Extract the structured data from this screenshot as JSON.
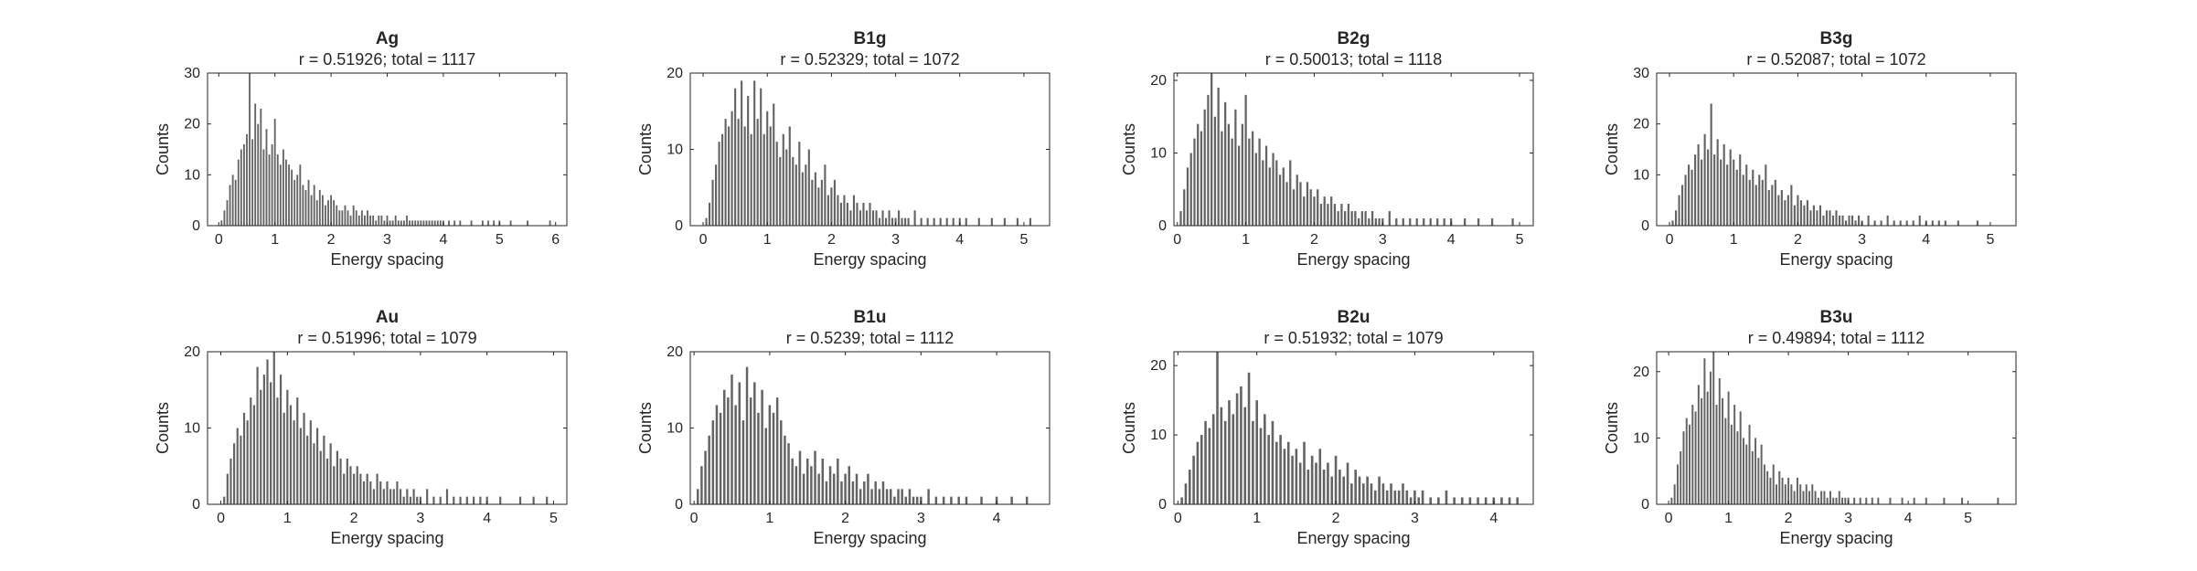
{
  "figure": {
    "background": "#ffffff",
    "bar_color": "#636363",
    "axis_color": "#262626"
  },
  "chart_data": [
    {
      "type": "bar",
      "title": "Ag",
      "subtitle": "r = 0.51926; total = 1117",
      "xlabel": "Energy spacing",
      "ylabel": "Counts",
      "xlim": [
        -0.2,
        6.2
      ],
      "ylim": [
        0,
        30
      ],
      "xticks": [
        "0",
        "1",
        "2",
        "3",
        "4",
        "5",
        "6"
      ],
      "yticks": [
        "0",
        "10",
        "20",
        "30"
      ],
      "bin_width": 0.03,
      "bins": [
        0.05,
        0.1,
        0.15,
        0.2,
        0.25,
        0.3,
        0.35,
        0.4,
        0.45,
        0.5,
        0.55,
        0.6,
        0.65,
        0.7,
        0.75,
        0.8,
        0.85,
        0.9,
        0.95,
        1.0,
        1.05,
        1.1,
        1.15,
        1.2,
        1.25,
        1.3,
        1.35,
        1.4,
        1.45,
        1.5,
        1.55,
        1.6,
        1.65,
        1.7,
        1.75,
        1.8,
        1.85,
        1.9,
        1.95,
        2.0,
        2.05,
        2.1,
        2.15,
        2.2,
        2.25,
        2.3,
        2.35,
        2.4,
        2.45,
        2.5,
        2.55,
        2.6,
        2.65,
        2.7,
        2.75,
        2.8,
        2.85,
        2.9,
        2.95,
        3.0,
        3.05,
        3.1,
        3.15,
        3.2,
        3.25,
        3.3,
        3.35,
        3.4,
        3.45,
        3.5,
        3.55,
        3.6,
        3.65,
        3.7,
        3.75,
        3.8,
        3.85,
        3.9,
        3.95,
        4.0,
        4.1,
        4.2,
        4.3,
        4.5,
        4.7,
        4.8,
        4.9,
        5.0,
        5.2,
        5.5,
        5.9
      ],
      "counts": [
        1,
        3,
        5,
        8,
        10,
        9,
        13,
        15,
        16,
        18,
        30,
        17,
        24,
        20,
        23,
        15,
        19,
        14,
        16,
        21,
        14,
        12,
        15,
        13,
        12,
        11,
        9,
        10,
        12,
        8,
        7,
        9,
        6,
        8,
        5,
        7,
        6,
        4,
        5,
        6,
        5,
        4,
        3,
        3,
        4,
        3,
        2,
        4,
        3,
        2,
        3,
        2,
        3,
        2,
        2,
        1,
        2,
        2,
        1,
        2,
        1,
        1,
        2,
        1,
        1,
        1,
        2,
        1,
        1,
        1,
        1,
        1,
        1,
        1,
        1,
        1,
        1,
        1,
        1,
        1,
        1,
        1,
        1,
        1,
        1,
        1,
        1,
        1,
        1,
        1,
        1
      ]
    },
    {
      "type": "bar",
      "title": "B1g",
      "subtitle": "r = 0.52329; total = 1072",
      "xlabel": "Energy spacing",
      "ylabel": "Counts",
      "xlim": [
        -0.2,
        5.4
      ],
      "ylim": [
        0,
        20
      ],
      "xticks": [
        "0",
        "1",
        "2",
        "3",
        "4",
        "5"
      ],
      "yticks": [
        "0",
        "10",
        "20"
      ],
      "bin_width": 0.03,
      "bins": [
        0.05,
        0.1,
        0.15,
        0.2,
        0.25,
        0.3,
        0.35,
        0.4,
        0.45,
        0.5,
        0.55,
        0.6,
        0.65,
        0.7,
        0.75,
        0.8,
        0.85,
        0.9,
        0.95,
        1.0,
        1.05,
        1.1,
        1.15,
        1.2,
        1.25,
        1.3,
        1.35,
        1.4,
        1.45,
        1.5,
        1.55,
        1.6,
        1.65,
        1.7,
        1.75,
        1.8,
        1.85,
        1.9,
        1.95,
        2.0,
        2.05,
        2.1,
        2.15,
        2.2,
        2.25,
        2.3,
        2.35,
        2.4,
        2.45,
        2.5,
        2.55,
        2.6,
        2.65,
        2.7,
        2.75,
        2.8,
        2.85,
        2.9,
        2.95,
        3.0,
        3.05,
        3.1,
        3.15,
        3.2,
        3.3,
        3.4,
        3.5,
        3.6,
        3.7,
        3.8,
        3.9,
        4.0,
        4.1,
        4.3,
        4.5,
        4.7,
        4.9,
        5.1
      ],
      "counts": [
        1,
        3,
        6,
        8,
        11,
        12,
        14,
        13,
        15,
        18,
        14,
        19,
        13,
        17,
        12,
        19,
        14,
        18,
        12,
        15,
        13,
        16,
        11,
        9,
        12,
        10,
        13,
        9,
        8,
        11,
        7,
        8,
        10,
        6,
        7,
        5,
        6,
        8,
        4,
        5,
        6,
        4,
        3,
        4,
        3,
        2,
        4,
        3,
        2,
        3,
        2,
        3,
        2,
        2,
        1,
        2,
        1,
        2,
        1,
        1,
        2,
        1,
        1,
        1,
        2,
        1,
        1,
        1,
        1,
        1,
        1,
        1,
        1,
        1,
        1,
        1,
        1,
        1
      ]
    },
    {
      "type": "bar",
      "title": "B2g",
      "subtitle": "r = 0.50013; total = 1118",
      "xlabel": "Energy spacing",
      "ylabel": "Counts",
      "xlim": [
        -0.05,
        5.2
      ],
      "ylim": [
        0,
        21
      ],
      "xticks": [
        "0",
        "1",
        "2",
        "3",
        "4",
        "5"
      ],
      "yticks": [
        "0",
        "10",
        "20"
      ],
      "bin_width": 0.03,
      "bins": [
        0.05,
        0.1,
        0.15,
        0.2,
        0.25,
        0.3,
        0.35,
        0.4,
        0.45,
        0.5,
        0.55,
        0.6,
        0.65,
        0.7,
        0.75,
        0.8,
        0.85,
        0.9,
        0.95,
        1.0,
        1.05,
        1.1,
        1.15,
        1.2,
        1.25,
        1.3,
        1.35,
        1.4,
        1.45,
        1.5,
        1.55,
        1.6,
        1.65,
        1.7,
        1.75,
        1.8,
        1.85,
        1.9,
        1.95,
        2.0,
        2.05,
        2.1,
        2.15,
        2.2,
        2.25,
        2.3,
        2.35,
        2.4,
        2.45,
        2.5,
        2.55,
        2.6,
        2.65,
        2.7,
        2.75,
        2.8,
        2.85,
        2.9,
        2.95,
        3.0,
        3.1,
        3.2,
        3.3,
        3.4,
        3.5,
        3.6,
        3.7,
        3.8,
        3.9,
        4.0,
        4.2,
        4.4,
        4.6,
        4.9
      ],
      "counts": [
        2,
        5,
        8,
        10,
        12,
        14,
        13,
        16,
        18,
        21,
        15,
        19,
        13,
        17,
        14,
        12,
        16,
        11,
        14,
        18,
        12,
        13,
        10,
        12,
        9,
        11,
        8,
        10,
        9,
        7,
        8,
        6,
        9,
        5,
        7,
        6,
        4,
        6,
        5,
        4,
        5,
        3,
        4,
        3,
        4,
        3,
        2,
        3,
        2,
        3,
        2,
        2,
        1,
        2,
        2,
        1,
        2,
        1,
        1,
        1,
        2,
        1,
        1,
        1,
        1,
        1,
        1,
        1,
        1,
        1,
        1,
        1,
        1,
        1
      ]
    },
    {
      "type": "bar",
      "title": "B3g",
      "subtitle": "r = 0.52087; total = 1072",
      "xlabel": "Energy spacing",
      "ylabel": "Counts",
      "xlim": [
        -0.2,
        5.4
      ],
      "ylim": [
        0,
        30
      ],
      "xticks": [
        "0",
        "1",
        "2",
        "3",
        "4",
        "5"
      ],
      "yticks": [
        "0",
        "10",
        "20",
        "30"
      ],
      "bin_width": 0.03,
      "bins": [
        0.05,
        0.1,
        0.15,
        0.2,
        0.25,
        0.3,
        0.35,
        0.4,
        0.45,
        0.5,
        0.55,
        0.6,
        0.65,
        0.7,
        0.75,
        0.8,
        0.85,
        0.9,
        0.95,
        1.0,
        1.05,
        1.1,
        1.15,
        1.2,
        1.25,
        1.3,
        1.35,
        1.4,
        1.45,
        1.5,
        1.55,
        1.6,
        1.65,
        1.7,
        1.75,
        1.8,
        1.85,
        1.9,
        1.95,
        2.0,
        2.05,
        2.1,
        2.15,
        2.2,
        2.25,
        2.3,
        2.35,
        2.4,
        2.45,
        2.5,
        2.55,
        2.6,
        2.65,
        2.7,
        2.75,
        2.8,
        2.85,
        2.9,
        2.95,
        3.0,
        3.1,
        3.2,
        3.3,
        3.4,
        3.5,
        3.6,
        3.7,
        3.8,
        3.9,
        4.0,
        4.1,
        4.2,
        4.3,
        4.5,
        4.8
      ],
      "counts": [
        1,
        3,
        6,
        8,
        10,
        12,
        11,
        14,
        16,
        13,
        18,
        15,
        24,
        14,
        17,
        13,
        16,
        12,
        15,
        13,
        11,
        14,
        10,
        12,
        9,
        11,
        8,
        10,
        9,
        12,
        7,
        8,
        9,
        6,
        7,
        5,
        6,
        8,
        4,
        6,
        5,
        4,
        5,
        3,
        4,
        3,
        4,
        2,
        3,
        3,
        2,
        3,
        2,
        2,
        1,
        2,
        2,
        1,
        2,
        1,
        2,
        1,
        1,
        2,
        1,
        1,
        1,
        1,
        2,
        1,
        1,
        1,
        1,
        1,
        1
      ]
    },
    {
      "type": "bar",
      "title": "Au",
      "subtitle": "r = 0.51996; total = 1079",
      "xlabel": "Energy spacing",
      "ylabel": "Counts",
      "xlim": [
        -0.2,
        5.2
      ],
      "ylim": [
        0,
        20
      ],
      "xticks": [
        "0",
        "1",
        "2",
        "3",
        "4",
        "5"
      ],
      "yticks": [
        "0",
        "10",
        "20"
      ],
      "bin_width": 0.03,
      "bins": [
        0.05,
        0.1,
        0.15,
        0.2,
        0.25,
        0.3,
        0.35,
        0.4,
        0.45,
        0.5,
        0.55,
        0.6,
        0.65,
        0.7,
        0.75,
        0.8,
        0.85,
        0.9,
        0.95,
        1.0,
        1.05,
        1.1,
        1.15,
        1.2,
        1.25,
        1.3,
        1.35,
        1.4,
        1.45,
        1.5,
        1.55,
        1.6,
        1.65,
        1.7,
        1.75,
        1.8,
        1.85,
        1.9,
        1.95,
        2.0,
        2.05,
        2.1,
        2.15,
        2.2,
        2.25,
        2.3,
        2.35,
        2.4,
        2.45,
        2.5,
        2.55,
        2.6,
        2.65,
        2.7,
        2.75,
        2.8,
        2.85,
        2.9,
        2.95,
        3.0,
        3.1,
        3.2,
        3.3,
        3.4,
        3.5,
        3.6,
        3.7,
        3.8,
        3.9,
        4.0,
        4.2,
        4.5,
        4.7,
        4.9
      ],
      "counts": [
        1,
        4,
        6,
        8,
        10,
        9,
        12,
        11,
        14,
        13,
        18,
        15,
        17,
        19,
        16,
        20,
        14,
        17,
        12,
        15,
        13,
        11,
        14,
        10,
        12,
        9,
        11,
        8,
        10,
        7,
        9,
        6,
        8,
        5,
        7,
        6,
        4,
        6,
        5,
        4,
        5,
        4,
        3,
        4,
        3,
        2,
        4,
        3,
        2,
        3,
        2,
        2,
        3,
        2,
        1,
        2,
        1,
        2,
        1,
        1,
        2,
        1,
        1,
        2,
        1,
        1,
        1,
        1,
        1,
        1,
        1,
        1,
        1,
        1
      ]
    },
    {
      "type": "bar",
      "title": "B1u",
      "subtitle": "r = 0.5239; total = 1112",
      "xlabel": "Energy spacing",
      "ylabel": "Counts",
      "xlim": [
        -0.05,
        4.7
      ],
      "ylim": [
        0,
        20
      ],
      "xticks": [
        "0",
        "1",
        "2",
        "3",
        "4"
      ],
      "yticks": [
        "0",
        "10",
        "20"
      ],
      "bin_width": 0.03,
      "bins": [
        0.05,
        0.1,
        0.15,
        0.2,
        0.25,
        0.3,
        0.35,
        0.4,
        0.45,
        0.5,
        0.55,
        0.6,
        0.65,
        0.7,
        0.75,
        0.8,
        0.85,
        0.9,
        0.95,
        1.0,
        1.05,
        1.1,
        1.15,
        1.2,
        1.25,
        1.3,
        1.35,
        1.4,
        1.45,
        1.5,
        1.55,
        1.6,
        1.65,
        1.7,
        1.75,
        1.8,
        1.85,
        1.9,
        1.95,
        2.0,
        2.05,
        2.1,
        2.15,
        2.2,
        2.25,
        2.3,
        2.35,
        2.4,
        2.45,
        2.5,
        2.55,
        2.6,
        2.65,
        2.7,
        2.75,
        2.8,
        2.85,
        2.9,
        2.95,
        3.0,
        3.1,
        3.2,
        3.3,
        3.4,
        3.5,
        3.6,
        3.8,
        4.0,
        4.2,
        4.4
      ],
      "counts": [
        2,
        5,
        7,
        9,
        11,
        13,
        12,
        15,
        14,
        17,
        13,
        16,
        11,
        18,
        14,
        16,
        12,
        15,
        10,
        13,
        12,
        14,
        11,
        9,
        8,
        6,
        5,
        7,
        4,
        6,
        5,
        7,
        4,
        6,
        3,
        5,
        4,
        6,
        3,
        4,
        5,
        3,
        4,
        2,
        3,
        4,
        2,
        3,
        2,
        3,
        2,
        2,
        1,
        2,
        2,
        1,
        2,
        1,
        1,
        1,
        2,
        1,
        1,
        1,
        1,
        1,
        1,
        1,
        1,
        1
      ]
    },
    {
      "type": "bar",
      "title": "B2u",
      "subtitle": "r = 0.51932; total = 1079",
      "xlabel": "Energy spacing",
      "ylabel": "Counts",
      "xlim": [
        -0.05,
        4.5
      ],
      "ylim": [
        0,
        22
      ],
      "xticks": [
        "0",
        "1",
        "2",
        "3",
        "4"
      ],
      "yticks": [
        "0",
        "10",
        "20"
      ],
      "bin_width": 0.03,
      "bins": [
        0.05,
        0.1,
        0.15,
        0.2,
        0.25,
        0.3,
        0.35,
        0.4,
        0.45,
        0.5,
        0.55,
        0.6,
        0.65,
        0.7,
        0.75,
        0.8,
        0.85,
        0.9,
        0.95,
        1.0,
        1.05,
        1.1,
        1.15,
        1.2,
        1.25,
        1.3,
        1.35,
        1.4,
        1.45,
        1.5,
        1.55,
        1.6,
        1.65,
        1.7,
        1.75,
        1.8,
        1.85,
        1.9,
        1.95,
        2.0,
        2.05,
        2.1,
        2.15,
        2.2,
        2.25,
        2.3,
        2.35,
        2.4,
        2.45,
        2.5,
        2.55,
        2.6,
        2.65,
        2.7,
        2.75,
        2.8,
        2.85,
        2.9,
        2.95,
        3.0,
        3.05,
        3.1,
        3.2,
        3.3,
        3.4,
        3.5,
        3.6,
        3.7,
        3.8,
        3.9,
        4.0,
        4.1,
        4.2,
        4.3
      ],
      "counts": [
        1,
        3,
        5,
        7,
        9,
        10,
        12,
        11,
        13,
        22,
        14,
        12,
        15,
        13,
        16,
        17,
        14,
        19,
        12,
        15,
        11,
        13,
        10,
        12,
        9,
        10,
        8,
        9,
        7,
        8,
        6,
        9,
        5,
        7,
        6,
        8,
        5,
        6,
        4,
        7,
        5,
        4,
        6,
        3,
        5,
        4,
        3,
        4,
        3,
        2,
        4,
        3,
        2,
        3,
        2,
        2,
        3,
        2,
        1,
        2,
        1,
        2,
        1,
        1,
        2,
        1,
        1,
        1,
        1,
        1,
        1,
        1,
        1,
        1
      ]
    },
    {
      "type": "bar",
      "title": "B3u",
      "subtitle": "r = 0.49894; total = 1112",
      "xlabel": "Energy spacing",
      "ylabel": "Counts",
      "xlim": [
        -0.2,
        5.8
      ],
      "ylim": [
        0,
        23
      ],
      "xticks": [
        "0",
        "1",
        "2",
        "3",
        "4",
        "5"
      ],
      "yticks": [
        "0",
        "10",
        "20"
      ],
      "bin_width": 0.03,
      "bins": [
        0.05,
        0.1,
        0.15,
        0.2,
        0.25,
        0.3,
        0.35,
        0.4,
        0.45,
        0.5,
        0.55,
        0.6,
        0.65,
        0.7,
        0.75,
        0.8,
        0.85,
        0.9,
        0.95,
        1.0,
        1.05,
        1.1,
        1.15,
        1.2,
        1.25,
        1.3,
        1.35,
        1.4,
        1.45,
        1.5,
        1.55,
        1.6,
        1.65,
        1.7,
        1.75,
        1.8,
        1.85,
        1.9,
        1.95,
        2.0,
        2.05,
        2.1,
        2.15,
        2.2,
        2.25,
        2.3,
        2.35,
        2.4,
        2.45,
        2.5,
        2.55,
        2.6,
        2.65,
        2.7,
        2.75,
        2.8,
        2.85,
        2.9,
        2.95,
        3.0,
        3.1,
        3.2,
        3.3,
        3.4,
        3.5,
        3.7,
        3.9,
        4.1,
        4.3,
        4.6,
        4.9,
        5.5
      ],
      "counts": [
        1,
        3,
        6,
        8,
        11,
        13,
        12,
        15,
        14,
        18,
        16,
        22,
        17,
        20,
        23,
        15,
        19,
        16,
        13,
        17,
        12,
        15,
        11,
        14,
        10,
        9,
        12,
        8,
        10,
        7,
        9,
        6,
        5,
        4,
        6,
        3,
        5,
        4,
        3,
        4,
        3,
        2,
        4,
        3,
        2,
        3,
        2,
        3,
        2,
        1,
        2,
        2,
        1,
        2,
        1,
        1,
        2,
        1,
        1,
        1,
        1,
        1,
        1,
        1,
        1,
        1,
        1,
        1,
        1,
        1,
        1,
        1
      ]
    }
  ]
}
